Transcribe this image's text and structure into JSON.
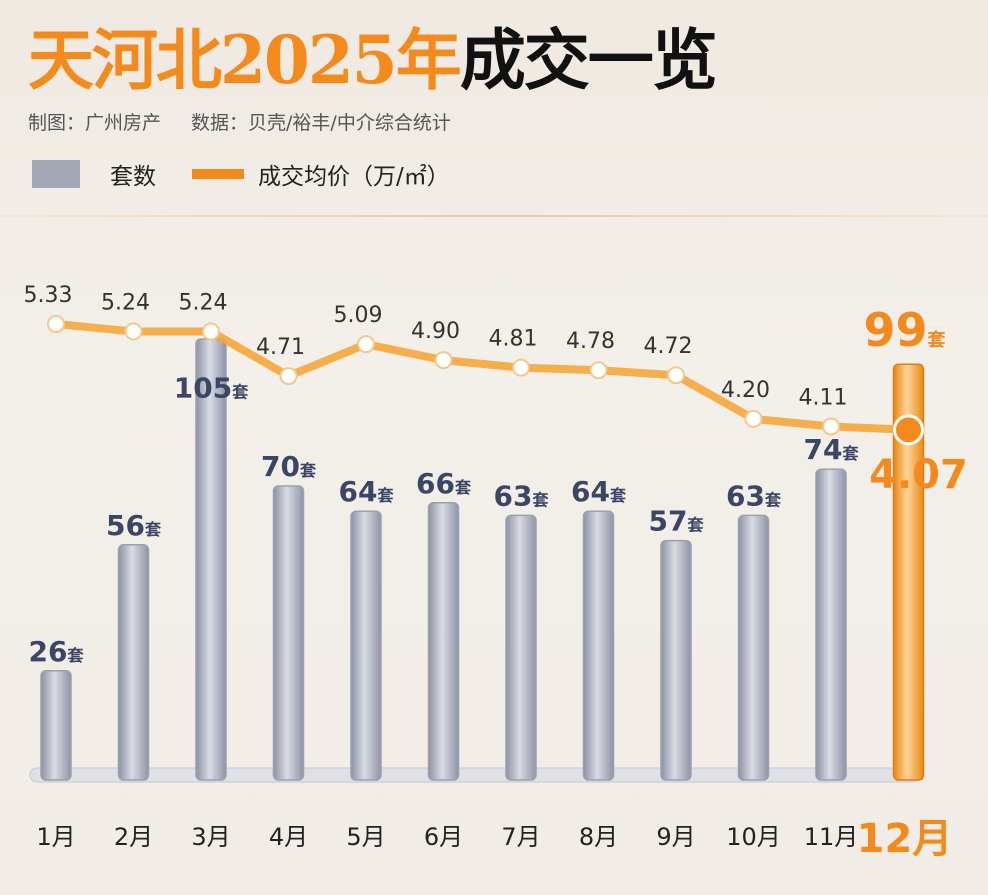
{
  "header": {
    "title_orange": "天河北2025年",
    "title_black": "成交一览",
    "credit": "制图：广州房产",
    "source": "数据：贝壳/裕丰/中介综合统计"
  },
  "legend": {
    "bars": "套数",
    "line": "成交均价（万/㎡）"
  },
  "colors": {
    "accent": "#f48a1c",
    "bar": "#a4a8b6",
    "label": "#3b4566"
  },
  "chart_data": {
    "type": "bar+line",
    "title": "天河北2025年成交一览",
    "categories": [
      "1月",
      "2月",
      "3月",
      "4月",
      "5月",
      "6月",
      "7月",
      "8月",
      "9月",
      "10月",
      "11月",
      "12月"
    ],
    "series": [
      {
        "name": "套数",
        "type": "bar",
        "unit": "套",
        "values": [
          26,
          56,
          105,
          70,
          64,
          66,
          63,
          64,
          57,
          63,
          74,
          99
        ]
      },
      {
        "name": "成交均价（万/㎡）",
        "type": "line",
        "values": [
          5.33,
          5.24,
          5.24,
          4.71,
          5.09,
          4.9,
          4.81,
          4.78,
          4.72,
          4.2,
          4.11,
          4.07
        ]
      }
    ],
    "highlight": "12月",
    "unit_suffix": "套"
  }
}
